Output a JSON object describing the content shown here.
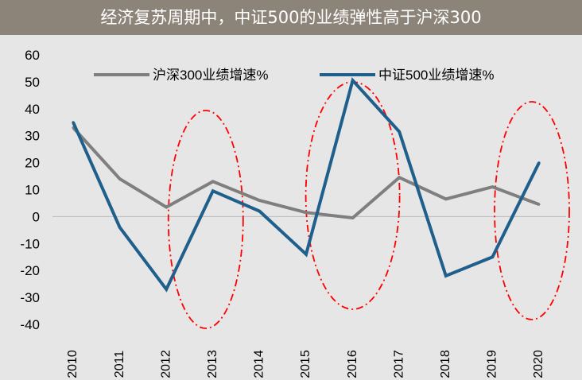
{
  "header": {
    "title": "经济复苏周期中，中证500的业绩弹性高于沪深300",
    "background": "#8c8479"
  },
  "chart_data": {
    "type": "line",
    "title": "经济复苏周期中，中证500的业绩弹性高于沪深300",
    "xlabel": "",
    "ylabel": "",
    "categories": [
      "2010",
      "2011",
      "2012",
      "2013",
      "2014",
      "2015",
      "2016",
      "2017",
      "2018",
      "2019",
      "2020"
    ],
    "ylim": [
      -40,
      60
    ],
    "yticks": [
      60,
      50,
      40,
      30,
      20,
      10,
      0,
      -10,
      -20,
      -30,
      -40
    ],
    "grid": false,
    "legend_position": "top",
    "series": [
      {
        "name": "沪深300业绩增速%",
        "color": "#7f7f7f",
        "values": [
          33,
          14,
          3.5,
          13,
          6,
          1.5,
          -0.5,
          14.5,
          6.5,
          11,
          4.5
        ]
      },
      {
        "name": "中证500业绩增速%",
        "color": "#1f5f8b",
        "values": [
          35,
          -4,
          -27,
          9.5,
          2,
          -14,
          50.5,
          31.5,
          -22,
          -15,
          20
        ]
      }
    ],
    "annotations": [
      {
        "type": "ellipse",
        "style": "dash-dot",
        "color": "#ff0000",
        "center_category": "2013"
      },
      {
        "type": "ellipse",
        "style": "dash-dot",
        "color": "#ff0000",
        "center_category": "2016"
      },
      {
        "type": "ellipse",
        "style": "dash-dot",
        "color": "#ff0000",
        "center_category": "2020"
      }
    ]
  }
}
